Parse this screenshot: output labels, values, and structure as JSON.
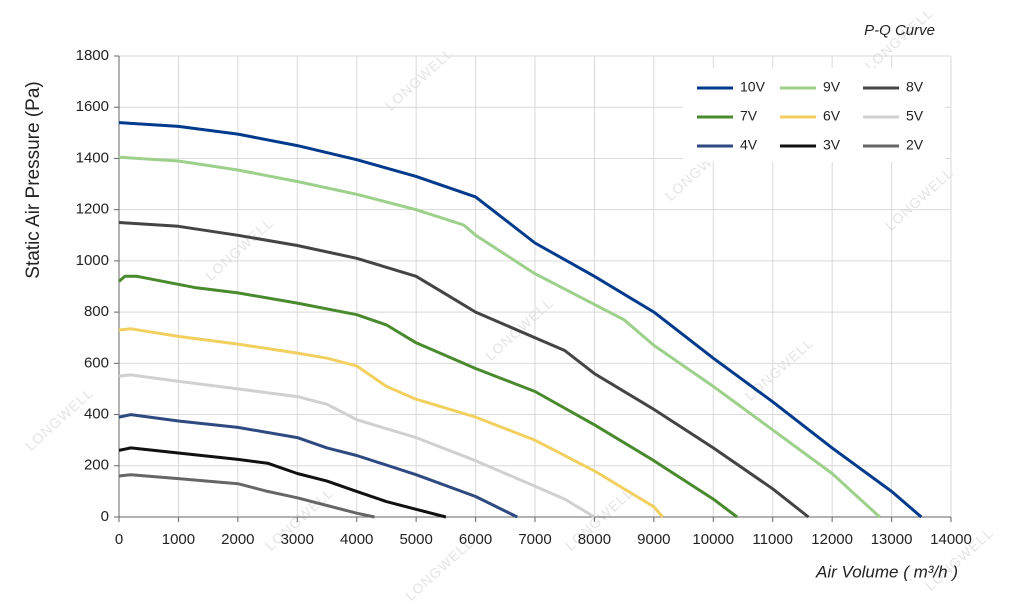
{
  "chart_data": {
    "type": "line",
    "title": "P-Q Curve",
    "x_label": "Air Volume ( m³/h )",
    "y_label": "Static Air Pressure  (Pa)",
    "watermark": "LONGWELL",
    "xlim": [
      0,
      14000
    ],
    "xticks": [
      0,
      1000,
      2000,
      3000,
      4000,
      5000,
      6000,
      7000,
      8000,
      9000,
      10000,
      11000,
      12000,
      13000,
      14000
    ],
    "ylim": [
      0,
      1800
    ],
    "yticks": [
      0,
      200,
      400,
      600,
      800,
      1000,
      1200,
      1400,
      1600,
      1800
    ],
    "grid": true,
    "legend": "upper right",
    "series": [
      {
        "name": "10V",
        "color": "#003a8c",
        "x": [
          0,
          1000,
          2000,
          3000,
          4000,
          5000,
          6000,
          6500,
          7000,
          8000,
          9000,
          10000,
          11000,
          12000,
          13000,
          13500
        ],
        "values": [
          1540,
          1525,
          1495,
          1450,
          1395,
          1330,
          1250,
          1160,
          1070,
          940,
          800,
          620,
          450,
          270,
          100,
          0
        ]
      },
      {
        "name": "9V",
        "color": "#9dd08a",
        "x": [
          0,
          1000,
          2000,
          3000,
          4000,
          5000,
          5800,
          6000,
          7000,
          8000,
          8500,
          9000,
          10000,
          11000,
          12000,
          12800
        ],
        "values": [
          1405,
          1390,
          1355,
          1310,
          1260,
          1200,
          1140,
          1100,
          950,
          830,
          770,
          670,
          510,
          340,
          170,
          0
        ]
      },
      {
        "name": "8V",
        "color": "#444444",
        "x": [
          0,
          1000,
          2000,
          3000,
          4000,
          5000,
          5500,
          6000,
          7000,
          7500,
          8000,
          9000,
          10000,
          11000,
          11600
        ],
        "values": [
          1150,
          1135,
          1100,
          1060,
          1010,
          940,
          870,
          800,
          700,
          650,
          560,
          420,
          270,
          110,
          0
        ]
      },
      {
        "name": "7V",
        "color": "#4a8a2e",
        "x": [
          0,
          100,
          300,
          1300,
          2000,
          3000,
          4000,
          4500,
          5000,
          6000,
          7000,
          8000,
          9000,
          10000,
          10400
        ],
        "values": [
          920,
          940,
          940,
          895,
          875,
          835,
          790,
          750,
          680,
          580,
          490,
          360,
          220,
          70,
          0
        ]
      },
      {
        "name": "6V",
        "color": "#f2d060",
        "x": [
          0,
          200,
          1000,
          2000,
          3000,
          3500,
          4000,
          4500,
          5000,
          6000,
          7000,
          8000,
          9000,
          9150
        ],
        "values": [
          730,
          735,
          705,
          675,
          640,
          620,
          590,
          510,
          460,
          390,
          300,
          180,
          40,
          0
        ]
      },
      {
        "name": "5V",
        "color": "#d0d0d0",
        "x": [
          0,
          200,
          1000,
          2000,
          3000,
          3500,
          4000,
          5000,
          6000,
          7000,
          7500,
          8000
        ],
        "values": [
          550,
          555,
          530,
          500,
          470,
          440,
          380,
          310,
          220,
          120,
          70,
          0
        ]
      },
      {
        "name": "4V",
        "color": "#2e4a80",
        "x": [
          0,
          200,
          1000,
          2000,
          3000,
          3500,
          4000,
          5000,
          6000,
          6700
        ],
        "values": [
          390,
          400,
          375,
          350,
          310,
          270,
          240,
          165,
          80,
          0
        ]
      },
      {
        "name": "3V",
        "color": "#111111",
        "x": [
          0,
          200,
          1000,
          2000,
          2500,
          3000,
          3500,
          4000,
          4500,
          5000,
          5500
        ],
        "values": [
          260,
          270,
          250,
          225,
          210,
          170,
          140,
          100,
          60,
          30,
          0
        ]
      },
      {
        "name": "2V",
        "color": "#666666",
        "x": [
          0,
          200,
          1000,
          2000,
          2500,
          3000,
          3500,
          4000,
          4300
        ],
        "values": [
          160,
          165,
          150,
          130,
          100,
          75,
          45,
          15,
          0
        ]
      }
    ]
  }
}
